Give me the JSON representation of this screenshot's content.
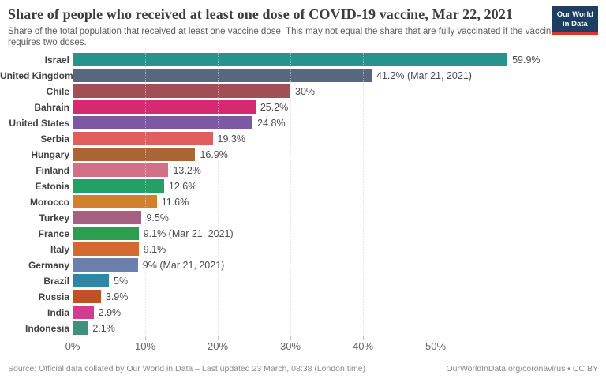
{
  "header": {
    "title": "Share of people who received at least one dose of COVID-19 vaccine, Mar 22, 2021",
    "subtitle": "Share of the total population that received at least one vaccine dose. This may not equal the share that are fully vaccinated if the vaccine requires two doses.",
    "logo": {
      "line1": "Our World",
      "line2": "in Data",
      "bg_color": "#1d3d63",
      "accent_color": "#dc362b"
    }
  },
  "chart_data": {
    "type": "bar",
    "orientation": "horizontal",
    "title": "Share of people who received at least one dose of COVID-19 vaccine, Mar 22, 2021",
    "xlabel": "",
    "ylabel": "",
    "xlim": [
      0,
      60
    ],
    "grid": "vertical-dotted",
    "categories": [
      "Israel",
      "United Kingdom",
      "Chile",
      "Bahrain",
      "United States",
      "Serbia",
      "Hungary",
      "Finland",
      "Estonia",
      "Morocco",
      "Turkey",
      "France",
      "Italy",
      "Germany",
      "Brazil",
      "Russia",
      "India",
      "Indonesia"
    ],
    "values": [
      59.9,
      41.2,
      30,
      25.2,
      24.8,
      19.3,
      16.9,
      13.2,
      12.6,
      11.6,
      9.5,
      9.1,
      9.1,
      9,
      5,
      3.9,
      2.9,
      2.1
    ],
    "value_labels": [
      "59.9%",
      "41.2% (Mar 21, 2021)",
      "30%",
      "25.2%",
      "24.8%",
      "19.3%",
      "16.9%",
      "13.2%",
      "12.6%",
      "11.6%",
      "9.5%",
      "9.1% (Mar 21, 2021)",
      "9.1%",
      "9% (Mar 21, 2021)",
      "5%",
      "3.9%",
      "2.9%",
      "2.1%"
    ],
    "bar_colors": [
      "#26948b",
      "#57687e",
      "#a04f55",
      "#d52a71",
      "#7e57a5",
      "#e05e5e",
      "#aa6436",
      "#d37089",
      "#22a066",
      "#d2802d",
      "#a55f80",
      "#2d9e50",
      "#d16a31",
      "#6d80ad",
      "#2e86a5",
      "#bf5222",
      "#d23b91",
      "#40907e"
    ],
    "x_ticks": [
      "0%",
      "10%",
      "20%",
      "30%",
      "40%",
      "50%"
    ],
    "x_tick_values": [
      0,
      10,
      20,
      30,
      40,
      50
    ]
  },
  "footer": {
    "source": "Source: Official data collated by Our World in Data – Last updated 23 March, 08:38 (London time)",
    "link": "OurWorldInData.org/coronavirus • CC BY"
  }
}
